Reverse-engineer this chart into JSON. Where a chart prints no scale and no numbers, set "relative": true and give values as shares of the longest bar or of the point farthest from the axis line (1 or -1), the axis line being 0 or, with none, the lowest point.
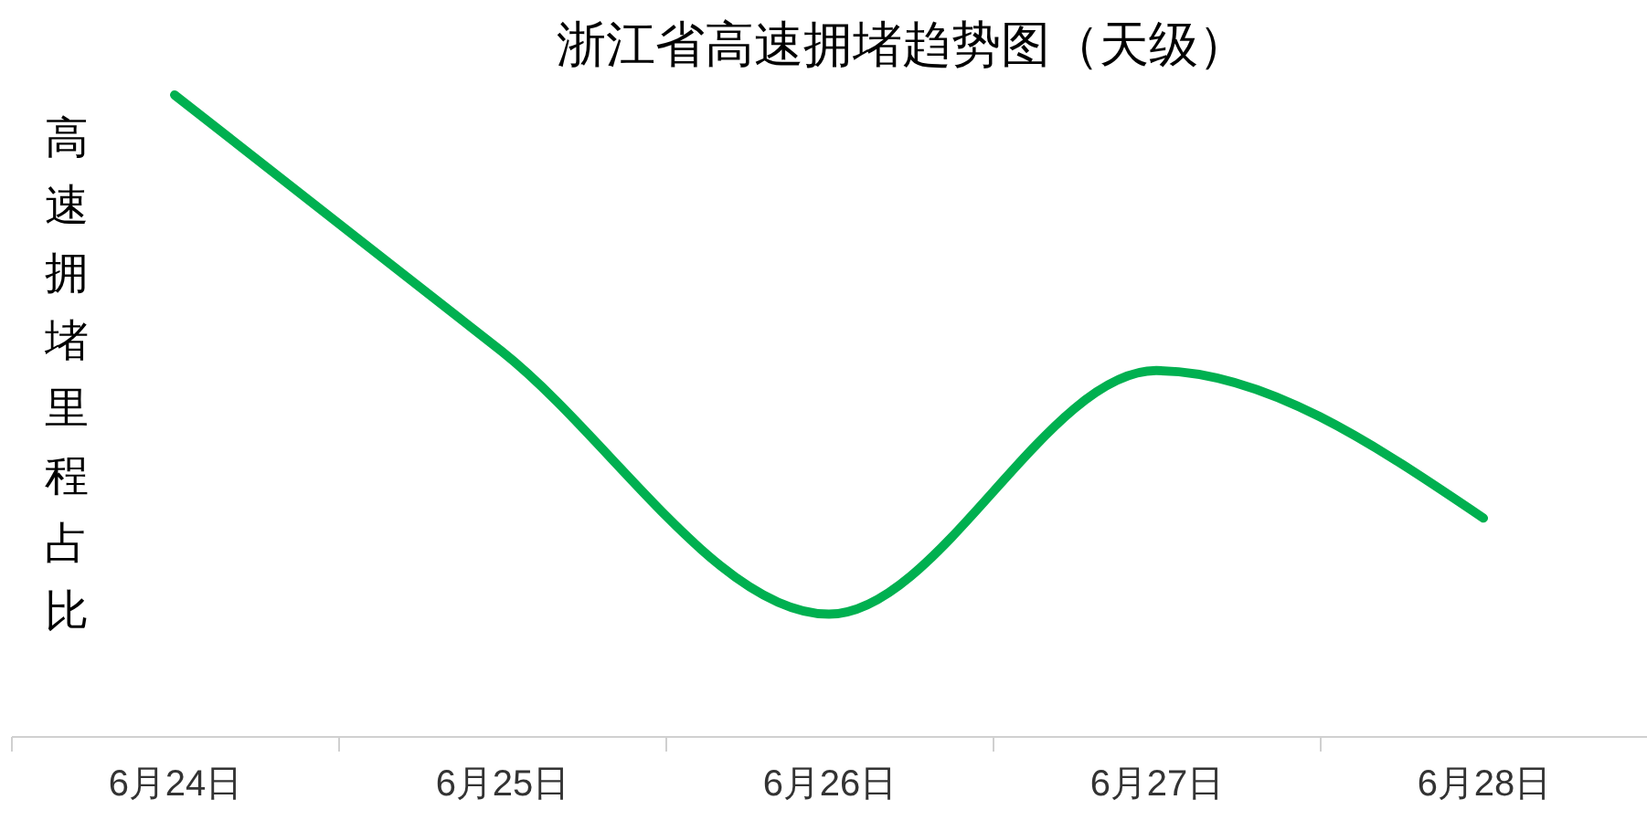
{
  "chart_data": {
    "type": "line",
    "title": "浙江省高速拥堵趋势图（天级）",
    "ylabel": "高速拥堵里程占比",
    "relative": true,
    "categories": [
      "6月24日",
      "6月25日",
      "6月26日",
      "6月27日",
      "6月28日"
    ],
    "series": [
      {
        "color": "#00b050",
        "values": [
          1,
          0.6,
          0.19,
          0.57,
          0.34
        ]
      }
    ],
    "grid": false
  }
}
